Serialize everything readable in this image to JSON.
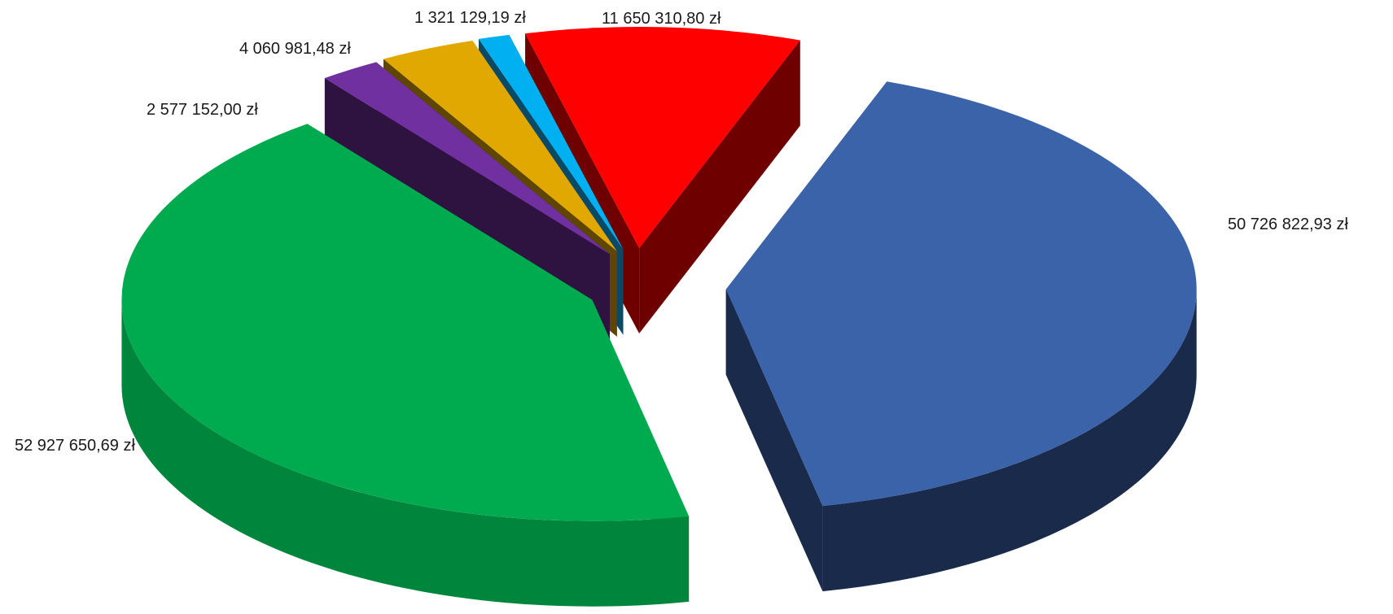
{
  "chart_data": {
    "type": "pie",
    "style": "3d-exploded",
    "title": "",
    "legend": "none",
    "slices": [
      {
        "label": "50 726 822,93 zł",
        "value": 50726822.93,
        "color": "#3A63AA",
        "side_color": "#1A2A4A"
      },
      {
        "label": "52 927 650,69 zł",
        "value": 52927650.69,
        "color": "#00AA4E",
        "side_color": "#00863C"
      },
      {
        "label": "2 577 152,00 zł",
        "value": 2577152.0,
        "color": "#7030A0",
        "side_color": "#2E1340"
      },
      {
        "label": "4 060 981,48 zł",
        "value": 4060981.48,
        "color": "#E0A800",
        "side_color": "#5E4500"
      },
      {
        "label": "1 321 129,19 zł",
        "value": 1321129.19,
        "color": "#00B0F0",
        "side_color": "#0A4A66"
      },
      {
        "label": "11 650 310,80 zł",
        "value": 11650310.8,
        "color": "#FF0000",
        "side_color": "#6E0000"
      }
    ]
  }
}
